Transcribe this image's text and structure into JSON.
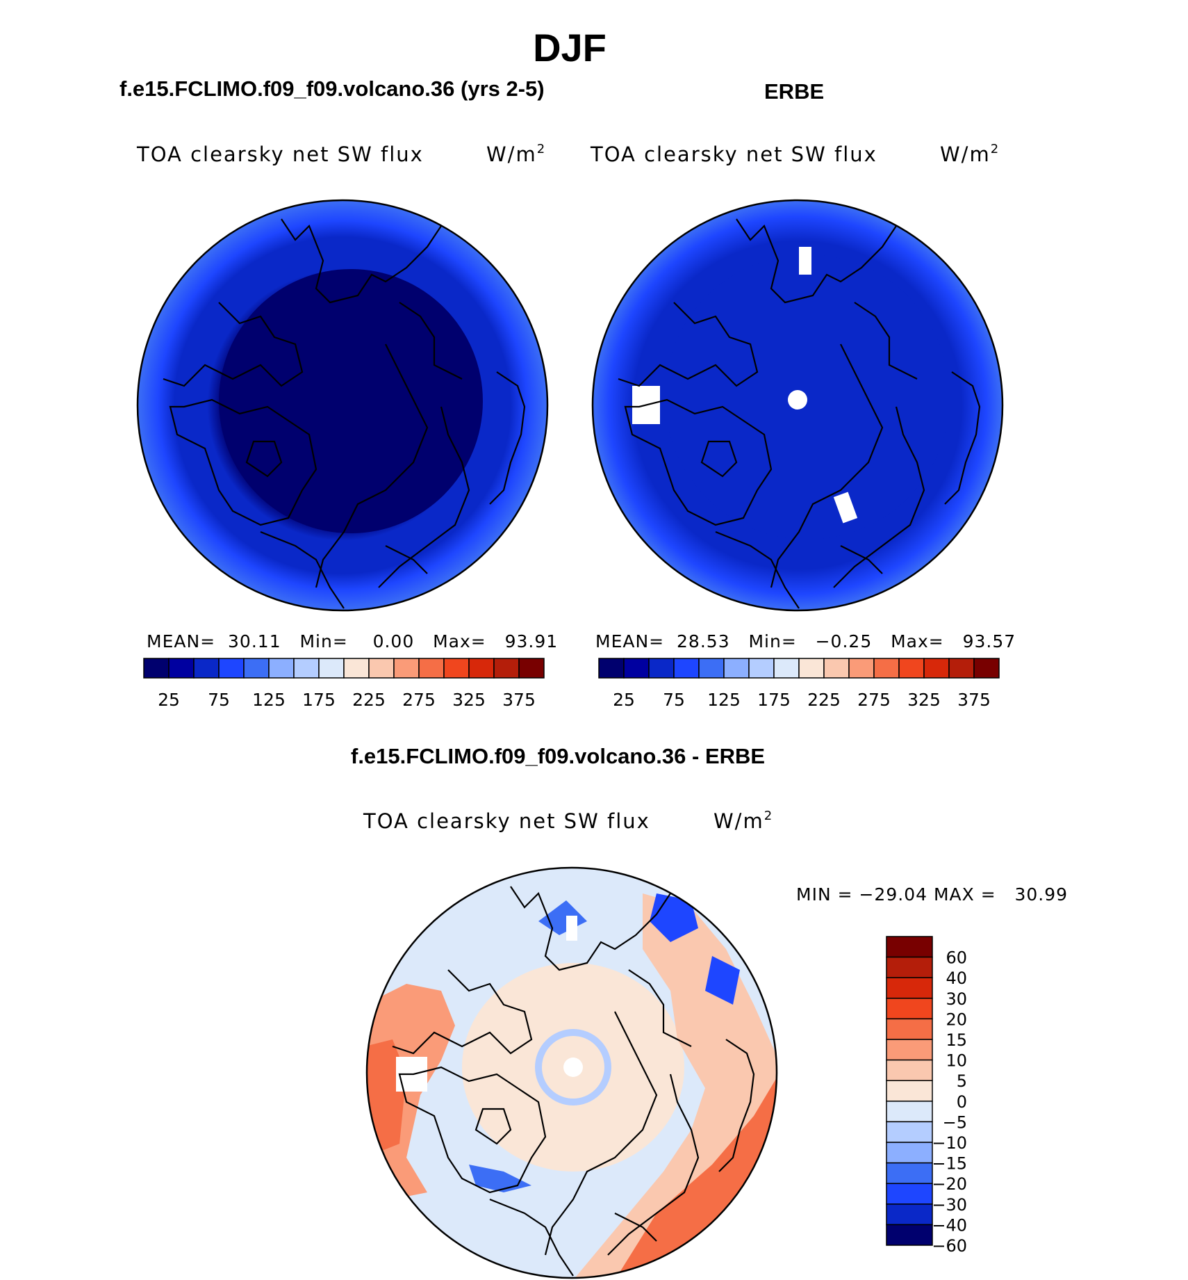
{
  "title": "DJF",
  "colors": {
    "abs_scale": [
      "#00006e",
      "#0000a0",
      "#0a28c8",
      "#1e46ff",
      "#3c6ef5",
      "#8cafff",
      "#b4cdff",
      "#dce9fa",
      "#fae6d7",
      "#fac8af",
      "#fa9b78",
      "#f56e46",
      "#f0461e",
      "#d7280a",
      "#b41e0a",
      "#780000"
    ],
    "diff_scale": [
      "#00006e",
      "#0a28c8",
      "#1e46ff",
      "#3c6ef5",
      "#8cafff",
      "#b4cdff",
      "#dce9fa",
      "#fae6d7",
      "#fac8af",
      "#fa9b78",
      "#f56e46",
      "#f0461e",
      "#d7280a",
      "#b41e0a",
      "#780000"
    ],
    "white_patch": "#ffffff"
  },
  "panels": {
    "model": {
      "title": "f.e15.FCLIMO.f09_f09.volcano.36 (yrs 2-5)",
      "variable": "TOA clearsky net SW flux",
      "units_base": "W/m",
      "units_exp": "2",
      "mean_label": "MEAN=",
      "mean_value": "30.11",
      "min_label": "Min=",
      "min_value": "0.00",
      "max_label": "Max=",
      "max_value": "93.91",
      "colorbar_ticks": [
        "25",
        "75",
        "125",
        "175",
        "225",
        "275",
        "325",
        "375"
      ]
    },
    "obs": {
      "title": "ERBE",
      "variable": "TOA clearsky net SW flux",
      "units_base": "W/m",
      "units_exp": "2",
      "mean_label": "MEAN=",
      "mean_value": "28.53",
      "min_label": "Min=",
      "min_value": "−0.25",
      "max_label": "Max=",
      "max_value": "93.57",
      "colorbar_ticks": [
        "25",
        "75",
        "125",
        "175",
        "225",
        "275",
        "325",
        "375"
      ]
    },
    "diff": {
      "title": "f.e15.FCLIMO.f09_f09.volcano.36 - ERBE",
      "variable": "TOA clearsky net SW flux",
      "units_base": "W/m",
      "units_exp": "2",
      "minmax_text": "MIN = −29.04 MAX =   30.99",
      "colorbar_ticks": [
        "60",
        "40",
        "30",
        "20",
        "15",
        "10",
        "5",
        "0",
        "−5",
        "−10",
        "−15",
        "−20",
        "−30",
        "−40",
        "−60"
      ]
    }
  }
}
